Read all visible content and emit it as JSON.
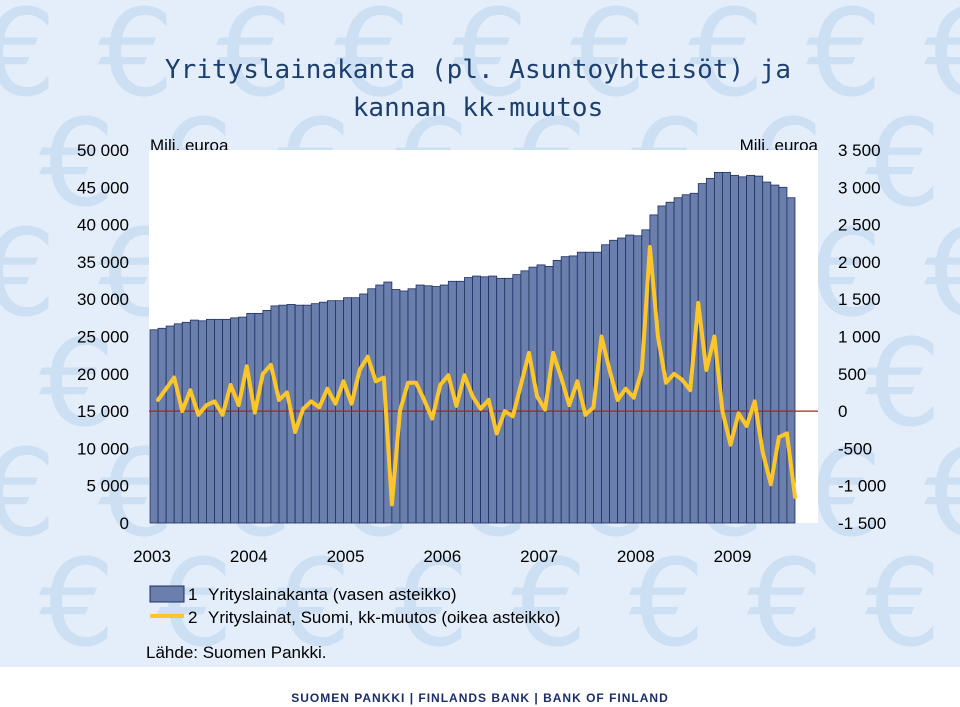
{
  "colors": {
    "background": "#e3eefa",
    "bar_fill": "#6b7fac",
    "bar_stroke": "#1f2f66",
    "line": "#ffc62a",
    "zero_line": "#b02020",
    "title": "#1c3f6e",
    "footer_text": "#1c2d69"
  },
  "footer": {
    "text": "SUOMEN PANKKI | FINLANDS BANK | BANK OF FINLAND"
  },
  "chart_data": {
    "type": "bar+line",
    "title_line1": "Yrityslainakanta (pl. Asuntoyhteisöt) ja",
    "title_line2": "kannan kk-muutos",
    "unit_left": "Milj. euroa",
    "unit_right": "Milj. euroa",
    "source": "Lähde: Suomen Pankki.",
    "y_left": {
      "min": 0,
      "max": 50000,
      "ticks": [
        "0",
        "5 000",
        "10 000",
        "15 000",
        "20 000",
        "25 000",
        "30 000",
        "35 000",
        "40 000",
        "45 000",
        "50 000"
      ]
    },
    "y_right": {
      "min": -1500,
      "max": 3500,
      "ticks": [
        "-1 500",
        "-1 000",
        "-500",
        "0",
        "500",
        "1 000",
        "1 500",
        "2 000",
        "2 500",
        "3 000",
        "3 500"
      ]
    },
    "x_labels": [
      "2003",
      "2004",
      "2005",
      "2006",
      "2007",
      "2008",
      "2009"
    ],
    "x_start": "2003-01",
    "legend": [
      {
        "number": "1",
        "label": "Yrityslainakanta (vasen asteikko)",
        "kind": "bar"
      },
      {
        "number": "2",
        "label": "Yrityslainat, Suomi, kk-muutos (oikea asteikko)",
        "kind": "line"
      }
    ],
    "series": [
      {
        "name": "Yrityslainakanta (vasen asteikko)",
        "axis": "left",
        "kind": "bar",
        "values": [
          25900,
          26100,
          26400,
          26700,
          26900,
          27200,
          27100,
          27300,
          27300,
          27300,
          27500,
          27600,
          28100,
          28100,
          28500,
          29100,
          29200,
          29300,
          29200,
          29200,
          29400,
          29600,
          29800,
          29800,
          30200,
          30200,
          30700,
          31400,
          31900,
          32300,
          31300,
          31100,
          31400,
          31900,
          31800,
          31700,
          31900,
          32400,
          32400,
          32900,
          33100,
          33000,
          33100,
          32800,
          32800,
          33300,
          33800,
          34300,
          34600,
          34400,
          35200,
          35700,
          35800,
          36300,
          36300,
          36300,
          37300,
          37900,
          38200,
          38600,
          38500,
          39300,
          41300,
          42500,
          43000,
          43600,
          44000,
          44200,
          45500,
          46200,
          47000,
          47000,
          46600,
          46400,
          46600,
          46500,
          45700,
          45300,
          45000,
          43600
        ]
      },
      {
        "name": "Yrityslainat, Suomi, kk-muutos (oikea asteikko)",
        "axis": "right",
        "kind": "line",
        "values": [
          150,
          300,
          450,
          0,
          280,
          -50,
          80,
          130,
          -50,
          350,
          80,
          600,
          -20,
          500,
          620,
          150,
          250,
          -280,
          30,
          130,
          50,
          300,
          100,
          400,
          100,
          550,
          730,
          400,
          450,
          -1250,
          0,
          380,
          380,
          150,
          -100,
          350,
          480,
          70,
          480,
          200,
          30,
          150,
          -300,
          0,
          -70,
          350,
          780,
          200,
          20,
          780,
          450,
          80,
          400,
          -50,
          50,
          1000,
          550,
          150,
          300,
          180,
          550,
          2200,
          1000,
          380,
          500,
          420,
          280,
          1450,
          550,
          1000,
          0,
          -450,
          -30,
          -200,
          130,
          -550,
          -980,
          -350,
          -300,
          -1150
        ]
      }
    ]
  }
}
